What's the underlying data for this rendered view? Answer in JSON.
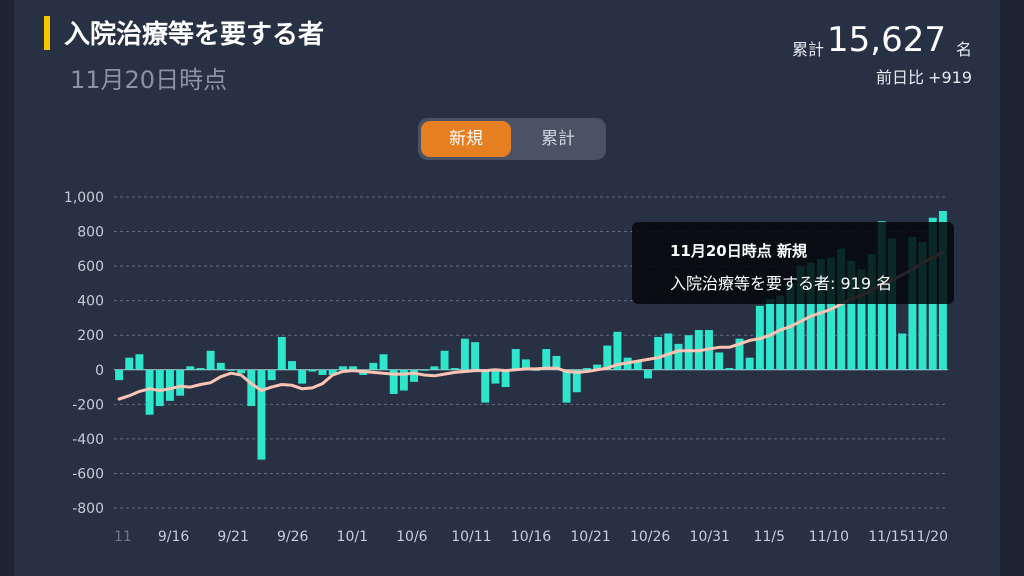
{
  "header": {
    "title": "入院治療等を要する者",
    "subtitle": "11月20日時点",
    "total_label": "累計",
    "total_value": "15,627",
    "total_unit": "名",
    "diff_label": "前日比",
    "diff_value": "+919"
  },
  "toggle": {
    "new_label": "新規",
    "cumulative_label": "累計",
    "selected": "新規"
  },
  "tooltip": {
    "line1": "11月20日時点 新規",
    "line2": "入院治療等を要する者: 919 名"
  },
  "colors": {
    "bar": "#2ee6cc",
    "line": "#ffc4b4",
    "accent": "#e67e22",
    "title_bar": "#f6c500",
    "background": "#283043"
  },
  "chart_data": {
    "type": "bar",
    "overlay": "line",
    "ylim": [
      -800,
      1000
    ],
    "yticks": [
      1000,
      800,
      600,
      400,
      200,
      0,
      -200,
      -400,
      -600,
      -800
    ],
    "ytick_labels": [
      "1,000",
      "800",
      "600",
      "400",
      "200",
      "0",
      "-200",
      "-400",
      "-600",
      "-800"
    ],
    "xtick_labels": [
      "11",
      "9/16",
      "9/21",
      "9/26",
      "10/1",
      "10/6",
      "10/11",
      "10/16",
      "10/21",
      "10/26",
      "10/31",
      "11/5",
      "11/10",
      "11/15",
      "11/20"
    ],
    "grid": true,
    "bars": [
      -60,
      70,
      90,
      -260,
      -210,
      -180,
      -150,
      20,
      10,
      110,
      40,
      0,
      -20,
      -210,
      -520,
      -60,
      190,
      50,
      -80,
      -10,
      -30,
      -30,
      20,
      20,
      -30,
      40,
      90,
      -140,
      -120,
      -70,
      0,
      20,
      110,
      10,
      180,
      160,
      -190,
      -80,
      -100,
      120,
      60,
      0,
      120,
      80,
      -190,
      -130,
      10,
      30,
      140,
      220,
      70,
      50,
      -50,
      190,
      210,
      150,
      200,
      230,
      230,
      100,
      10,
      180,
      70,
      370,
      410,
      430,
      500,
      600,
      620,
      640,
      650,
      700,
      630,
      580,
      670,
      860,
      760,
      210,
      770,
      740,
      880,
      919
    ],
    "moving_average": [
      -170,
      -150,
      -125,
      -110,
      -120,
      -110,
      -95,
      -100,
      -85,
      -75,
      -40,
      -20,
      -30,
      -80,
      -120,
      -100,
      -85,
      -90,
      -110,
      -105,
      -80,
      -30,
      -10,
      -5,
      -10,
      -15,
      -20,
      -25,
      -25,
      -20,
      -30,
      -35,
      -25,
      -15,
      -10,
      -5,
      -5,
      0,
      -5,
      0,
      5,
      5,
      10,
      10,
      -10,
      -15,
      -10,
      0,
      10,
      30,
      40,
      50,
      60,
      70,
      90,
      110,
      110,
      110,
      120,
      130,
      130,
      150,
      170,
      180,
      200,
      230,
      250,
      280,
      310,
      330,
      350,
      380,
      410,
      430,
      460,
      490,
      520,
      550,
      580,
      620,
      650,
      680
    ]
  }
}
